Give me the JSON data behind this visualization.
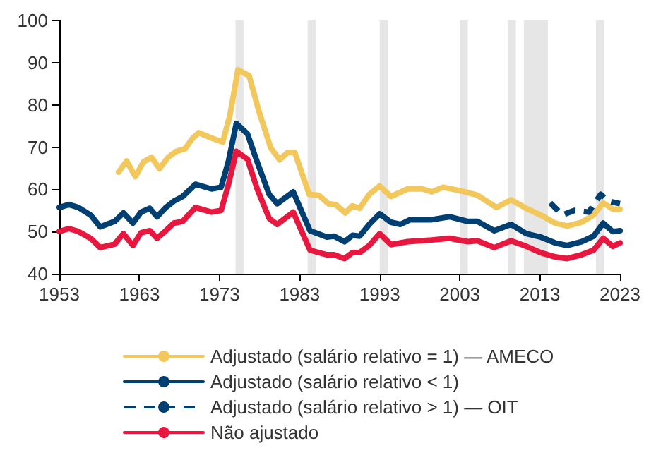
{
  "chart_data": {
    "type": "line",
    "xlim": [
      1953,
      2023
    ],
    "xticks": [
      1953,
      1963,
      1973,
      1983,
      1993,
      2003,
      2013,
      2023
    ],
    "ylim": [
      40,
      100
    ],
    "yticks": [
      40,
      50,
      60,
      70,
      80,
      90,
      100
    ],
    "grid": false,
    "legend": "bottom",
    "marker": "none",
    "line_style": "solid",
    "bands": [
      {
        "axis": "x",
        "from": 1975,
        "to": 1976,
        "color": "#e6e6e6"
      },
      {
        "axis": "x",
        "from": 1984,
        "to": 1985,
        "color": "#e6e6e6"
      },
      {
        "axis": "x",
        "from": 1993,
        "to": 1994,
        "color": "#e6e6e6"
      },
      {
        "axis": "x",
        "from": 2003,
        "to": 2004,
        "color": "#e6e6e6"
      },
      {
        "axis": "x",
        "from": 2009,
        "to": 2010,
        "color": "#e6e6e6"
      },
      {
        "axis": "x",
        "from": 2011,
        "to": 2014,
        "color": "#e6e6e6"
      },
      {
        "axis": "x",
        "from": 2020,
        "to": 2021,
        "color": "#e6e6e6"
      }
    ],
    "series": [
      {
        "name": "Adjustado (salário relativo = 1) — AMECO",
        "color": "#f2c75c",
        "x": [
          1960.4,
          1961.4,
          1962.5,
          1963.5,
          1964.5,
          1965.5,
          1966.6,
          1967.6,
          1968.7,
          1969.6,
          1970.4,
          1972.2,
          1973.4,
          1974.3,
          1975.3,
          1976.7,
          1977.9,
          1979.4,
          1980.5,
          1981.5,
          1982.4,
          1984.2,
          1985.4,
          1986.6,
          1987.5,
          1988.7,
          1989.6,
          1990.5,
          1991.7,
          1993,
          1994.4,
          1996.5,
          1998.3,
          1999.5,
          2000.9,
          2003,
          2005.2,
          2007.6,
          2009.4,
          2011.3,
          2013.1,
          2014.9,
          2016.4,
          2018.2,
          2019.7,
          2020.9,
          2022.1,
          2023
        ],
        "values": [
          64.1,
          66.7,
          63,
          66.5,
          67.6,
          64.9,
          67.6,
          69,
          69.6,
          72,
          73.4,
          72,
          71.2,
          77.5,
          88.3,
          86.9,
          78.6,
          69.8,
          67,
          68.7,
          68.7,
          58.8,
          58.6,
          56.6,
          56.4,
          54.4,
          56.1,
          55.5,
          58.8,
          60.8,
          58.3,
          60.1,
          60.1,
          59.4,
          60.5,
          59.7,
          58.6,
          55.7,
          57.5,
          55.5,
          53.9,
          52,
          51.3,
          52.2,
          53.9,
          56.8,
          55.3,
          55.3
        ]
      },
      {
        "name": "Adjustado (salário relativo < 1)",
        "color": "#003f72",
        "x": [
          1953,
          1954.2,
          1955.4,
          1956.9,
          1958.1,
          1959.9,
          1961,
          1962.2,
          1963.2,
          1964.3,
          1965.2,
          1966.3,
          1967.3,
          1968.4,
          1970,
          1972,
          1973.2,
          1974.1,
          1975.1,
          1976.5,
          1977.7,
          1979.2,
          1980.2,
          1982.2,
          1984.3,
          1986.4,
          1987.3,
          1988.6,
          1989.6,
          1990.5,
          1991.7,
          1993,
          1994.4,
          1995.6,
          1996.8,
          1999.5,
          2001.7,
          2004,
          2005.2,
          2007.3,
          2009.4,
          2011.3,
          2013.1,
          2014.9,
          2016.4,
          2018.2,
          2019.7,
          2020.9,
          2022.1,
          2023
        ],
        "values": [
          55.7,
          56.4,
          55.7,
          53.9,
          51.1,
          52.4,
          54.4,
          52,
          54.6,
          55.5,
          53.5,
          55.7,
          57.2,
          58.3,
          61.2,
          60.1,
          60.5,
          66.5,
          75.6,
          73.1,
          66.5,
          58.8,
          56.6,
          59.4,
          50.2,
          48.7,
          48.9,
          47.6,
          49.1,
          48.9,
          51.7,
          54.2,
          52.2,
          51.7,
          52.8,
          52.8,
          53.5,
          52.4,
          52.4,
          50.2,
          51.7,
          49.5,
          48.7,
          47.3,
          46.7,
          47.6,
          48.9,
          52,
          50,
          50.2
        ]
      },
      {
        "name": "Adjustado (salário relativo > 1) — OIT",
        "color": "#003f72",
        "line_style": "dashed",
        "x": [
          2014.3,
          2015.8,
          2017.3,
          2019.1,
          2020.6,
          2021.5,
          2023
        ],
        "values": [
          56.8,
          53.9,
          55,
          54.6,
          58.8,
          57.2,
          56.6
        ]
      },
      {
        "name": "Não ajustado",
        "color": "#e8173f",
        "x": [
          1953,
          1954.2,
          1955.4,
          1956.9,
          1958.1,
          1959.9,
          1961,
          1962.2,
          1963.2,
          1964.3,
          1965.2,
          1966.3,
          1967.3,
          1968.4,
          1970,
          1972,
          1973.2,
          1974.1,
          1975.1,
          1976.5,
          1977.7,
          1979.2,
          1980.2,
          1982.2,
          1984.3,
          1986.4,
          1987.3,
          1988.6,
          1989.6,
          1990.5,
          1991.7,
          1993,
          1994.4,
          1996.5,
          1999.5,
          2001.7,
          2004,
          2005.2,
          2007.3,
          2009.4,
          2011.3,
          2013.1,
          2014.9,
          2016.4,
          2018.2,
          2019.7,
          2020.9,
          2022.1,
          2023
        ],
        "values": [
          50,
          50.7,
          50,
          48.4,
          46.2,
          47,
          49.5,
          46.7,
          49.7,
          50.2,
          48.4,
          50.2,
          52,
          52.4,
          55.7,
          54.6,
          55,
          61,
          69,
          67.1,
          60.1,
          53.1,
          51.7,
          54.6,
          45.6,
          44.5,
          44.5,
          43.6,
          45,
          45,
          46.7,
          49.5,
          46.9,
          47.6,
          48,
          48.4,
          47.6,
          47.8,
          46.2,
          47.8,
          46.5,
          45,
          44,
          43.6,
          44.5,
          45.6,
          48.4,
          46.5,
          47.3
        ]
      }
    ]
  }
}
